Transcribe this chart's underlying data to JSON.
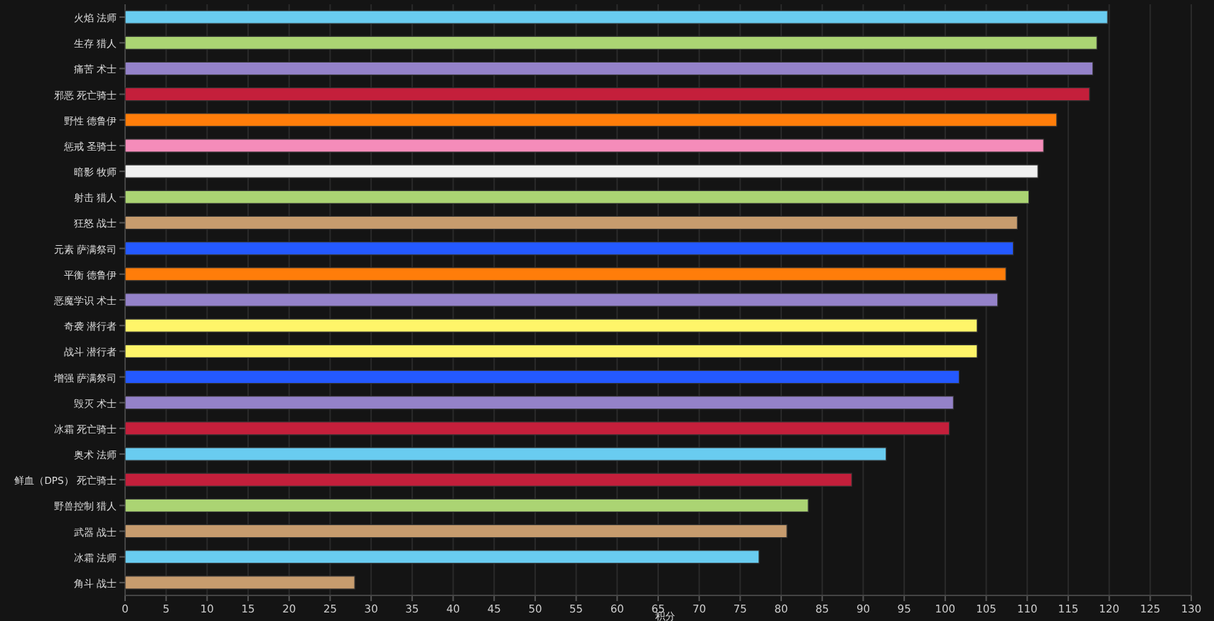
{
  "chart_data": {
    "type": "bar",
    "orientation": "horizontal",
    "xlabel": "积分",
    "categories": [
      "火焰 法师",
      "生存 猎人",
      "痛苦 术士",
      "邪恶 死亡骑士",
      "野性 德鲁伊",
      "惩戒 圣骑士",
      "暗影 牧师",
      "射击 猎人",
      "狂怒 战士",
      "元素 萨满祭司",
      "平衡 德鲁伊",
      "恶魔学识 术士",
      "奇袭 潜行者",
      "战斗 潜行者",
      "增强 萨满祭司",
      "毁灭 术士",
      "冰霜 死亡骑士",
      "奥术 法师",
      "鲜血（DPS） 死亡骑士",
      "野兽控制 猎人",
      "武器 战士",
      "冰霜 法师",
      "角斗 战士"
    ],
    "values": [
      119.8,
      118.5,
      118,
      117.6,
      113.6,
      112,
      111.3,
      110.2,
      108.8,
      108.3,
      107.4,
      106.4,
      103.9,
      103.9,
      101.7,
      101,
      100.5,
      92.8,
      88.6,
      83.3,
      80.7,
      77.3,
      28
    ],
    "colors": [
      "#69ccf0",
      "#abd473",
      "#9482c9",
      "#c41f3b",
      "#ff7d0a",
      "#f58cba",
      "#f0f0f0",
      "#abd473",
      "#c79c6e",
      "#2459ff",
      "#ff7d0a",
      "#9482c9",
      "#fff569",
      "#fff569",
      "#2459ff",
      "#9482c9",
      "#c41f3b",
      "#69ccf0",
      "#c41f3b",
      "#abd473",
      "#c79c6e",
      "#69ccf0",
      "#c79c6e"
    ],
    "xlim": [
      0,
      130
    ],
    "xticks": [
      0,
      5,
      10,
      15,
      20,
      25,
      30,
      35,
      40,
      45,
      50,
      55,
      60,
      65,
      70,
      75,
      80,
      85,
      90,
      95,
      100,
      105,
      110,
      115,
      120,
      125,
      130
    ],
    "grid": "x"
  }
}
